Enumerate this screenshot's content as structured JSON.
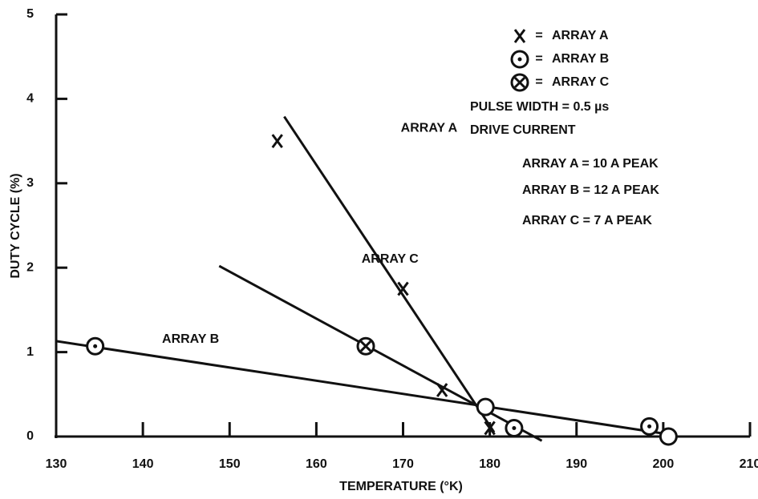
{
  "chart_data": {
    "type": "scatter",
    "x_label": "TEMPERATURE (°K)",
    "y_label": "DUTY CYCLE (%)",
    "xlim": [
      130,
      210
    ],
    "xticks": [
      130,
      140,
      150,
      160,
      170,
      180,
      190,
      200,
      210
    ],
    "ylim": [
      0,
      5
    ],
    "yticks": [
      0,
      1,
      2,
      3,
      4,
      5
    ],
    "legend_separator": "=",
    "color": "#111111",
    "series": [
      {
        "name": "ARRAY A",
        "marker": "x",
        "x": [
          155.5,
          170,
          174.5,
          180
        ],
        "values": [
          3.5,
          1.75,
          0.55,
          0.1
        ],
        "line_x": [
          156.3,
          180.5
        ],
        "line_y": [
          3.79,
          0.05
        ]
      },
      {
        "name": "ARRAY B",
        "marker": "circle-dot",
        "x": [
          134.5,
          182.8,
          198.4
        ],
        "values": [
          1.07,
          0.1,
          0.12
        ],
        "line_x": [
          130,
          200.4
        ],
        "line_y": [
          1.13,
          0.03
        ]
      },
      {
        "name": "ARRAY C",
        "marker": "circle-x",
        "x": [
          165.7
        ],
        "values": [
          1.07
        ],
        "line_x": [
          148.8,
          186
        ],
        "line_y": [
          2.02,
          -0.05
        ]
      },
      {
        "marker": "circle",
        "x": [
          179.5,
          200.6
        ],
        "values": [
          0.35,
          0
        ]
      }
    ],
    "line_labels": [
      {
        "text": "ARRAY A",
        "x": 173,
        "y": 3.65
      },
      {
        "text": "ARRAY C",
        "x": 168.5,
        "y": 2.1
      },
      {
        "text": "ARRAY B",
        "x": 145.5,
        "y": 1.15
      }
    ],
    "notes": [
      "PULSE WIDTH = 0.5 µs",
      "DRIVE CURRENT",
      "ARRAY A = 10 A PEAK",
      "ARRAY B = 12 A PEAK",
      "ARRAY C = 7 A PEAK"
    ]
  }
}
